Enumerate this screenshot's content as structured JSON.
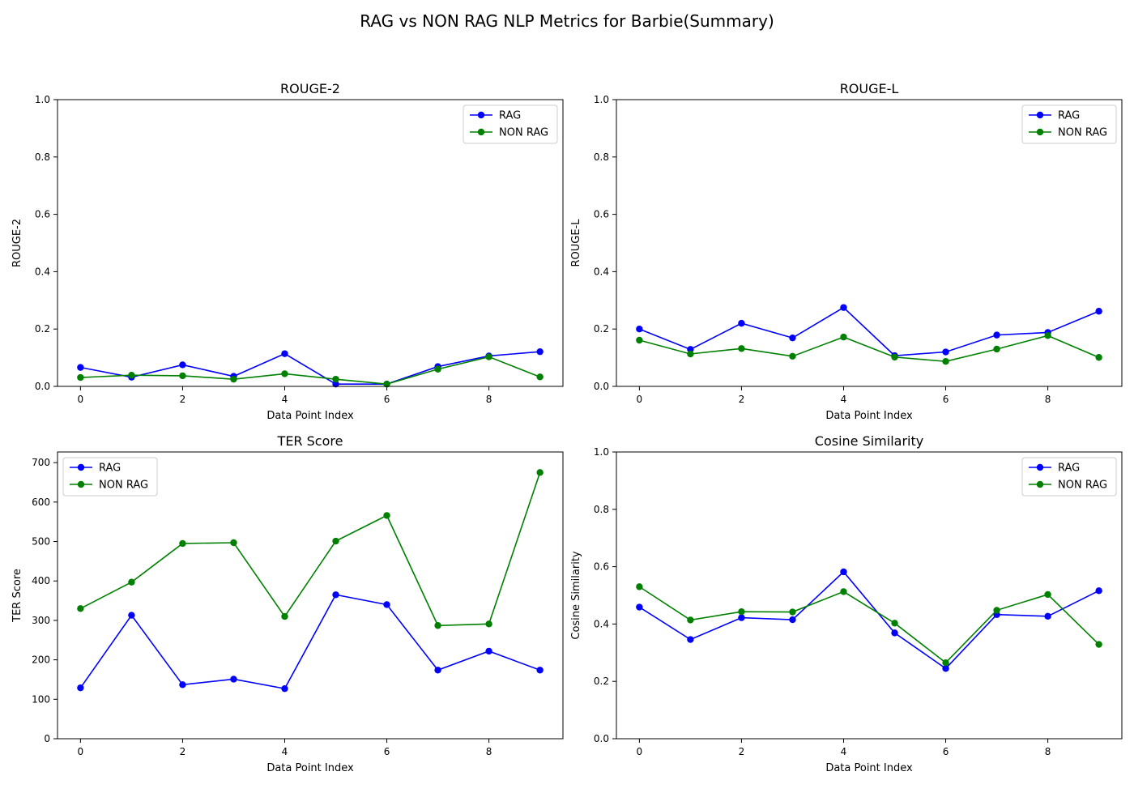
{
  "figure": {
    "title": "RAG vs NON RAG NLP Metrics for Barbie(Summary)"
  },
  "chart_data": [
    {
      "type": "line",
      "title": "ROUGE-2",
      "xlabel": "Data Point Index",
      "ylabel": "ROUGE-2",
      "x": [
        0,
        1,
        2,
        3,
        4,
        5,
        6,
        7,
        8,
        9
      ],
      "xlim": [
        -0.45,
        9.45
      ],
      "ylim": [
        0,
        1.0
      ],
      "xticks": [
        0,
        2,
        4,
        6,
        8
      ],
      "yticks": [
        0.0,
        0.2,
        0.4,
        0.6,
        0.8,
        1.0
      ],
      "ytick_labels": [
        "0.0",
        "0.2",
        "0.4",
        "0.6",
        "0.8",
        "1.0"
      ],
      "legend": "top-right",
      "grid": false,
      "series": [
        {
          "name": "RAG",
          "color": "#0000ff",
          "values": [
            0.066,
            0.032,
            0.075,
            0.035,
            0.114,
            0.008,
            0.008,
            0.069,
            0.106,
            0.121
          ]
        },
        {
          "name": "NON RAG",
          "color": "#008000",
          "values": [
            0.031,
            0.039,
            0.037,
            0.025,
            0.044,
            0.025,
            0.008,
            0.06,
            0.103,
            0.033
          ]
        }
      ]
    },
    {
      "type": "line",
      "title": "ROUGE-L",
      "xlabel": "Data Point Index",
      "ylabel": "ROUGE-L",
      "x": [
        0,
        1,
        2,
        3,
        4,
        5,
        6,
        7,
        8,
        9
      ],
      "xlim": [
        -0.45,
        9.45
      ],
      "ylim": [
        0,
        1.0
      ],
      "xticks": [
        0,
        2,
        4,
        6,
        8
      ],
      "yticks": [
        0.0,
        0.2,
        0.4,
        0.6,
        0.8,
        1.0
      ],
      "ytick_labels": [
        "0.0",
        "0.2",
        "0.4",
        "0.6",
        "0.8",
        "1.0"
      ],
      "legend": "top-right",
      "grid": false,
      "series": [
        {
          "name": "RAG",
          "color": "#0000ff",
          "values": [
            0.2,
            0.129,
            0.22,
            0.169,
            0.275,
            0.107,
            0.12,
            0.179,
            0.188,
            0.262
          ]
        },
        {
          "name": "NON RAG",
          "color": "#008000",
          "values": [
            0.161,
            0.113,
            0.132,
            0.105,
            0.172,
            0.102,
            0.087,
            0.13,
            0.177,
            0.101
          ]
        }
      ]
    },
    {
      "type": "line",
      "title": "TER Score",
      "xlabel": "Data Point Index",
      "ylabel": "TER Score",
      "x": [
        0,
        1,
        2,
        3,
        4,
        5,
        6,
        7,
        8,
        9
      ],
      "xlim": [
        -0.45,
        9.45
      ],
      "ylim": [
        0,
        727
      ],
      "xticks": [
        0,
        2,
        4,
        6,
        8
      ],
      "yticks": [
        0,
        100,
        200,
        300,
        400,
        500,
        600,
        700
      ],
      "ytick_labels": [
        "0",
        "100",
        "200",
        "300",
        "400",
        "500",
        "600",
        "700"
      ],
      "legend": "top-left",
      "grid": false,
      "series": [
        {
          "name": "RAG",
          "color": "#0000ff",
          "values": [
            129,
            313,
            137,
            151,
            127,
            365,
            340,
            174,
            222,
            174
          ]
        },
        {
          "name": "NON RAG",
          "color": "#008000",
          "values": [
            330,
            397,
            495,
            497,
            310,
            501,
            566,
            287,
            291,
            675
          ]
        }
      ]
    },
    {
      "type": "line",
      "title": "Cosine Similarity",
      "xlabel": "Data Point Index",
      "ylabel": "Cosine Similarity",
      "x": [
        0,
        1,
        2,
        3,
        4,
        5,
        6,
        7,
        8,
        9
      ],
      "xlim": [
        -0.45,
        9.45
      ],
      "ylim": [
        0,
        1.0
      ],
      "xticks": [
        0,
        2,
        4,
        6,
        8
      ],
      "yticks": [
        0.0,
        0.2,
        0.4,
        0.6,
        0.8,
        1.0
      ],
      "ytick_labels": [
        "0.0",
        "0.2",
        "0.4",
        "0.6",
        "0.8",
        "1.0"
      ],
      "legend": "top-right",
      "grid": false,
      "series": [
        {
          "name": "RAG",
          "color": "#0000ff",
          "values": [
            0.459,
            0.346,
            0.422,
            0.415,
            0.582,
            0.369,
            0.245,
            0.433,
            0.427,
            0.516
          ]
        },
        {
          "name": "NON RAG",
          "color": "#008000",
          "values": [
            0.53,
            0.414,
            0.443,
            0.442,
            0.513,
            0.403,
            0.265,
            0.448,
            0.503,
            0.329
          ]
        }
      ]
    }
  ]
}
